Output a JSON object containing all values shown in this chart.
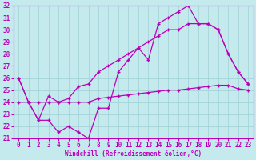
{
  "xlabel": "Windchill (Refroidissement éolien,°C)",
  "x": [
    0,
    1,
    2,
    3,
    4,
    5,
    6,
    7,
    8,
    9,
    10,
    11,
    12,
    13,
    14,
    15,
    16,
    17,
    18,
    19,
    20,
    21,
    22,
    23
  ],
  "curve_zigzag": [
    26,
    24,
    22.5,
    22.5,
    21.5,
    22,
    21.5,
    21,
    23.5,
    23.5,
    26.5,
    27.5,
    28.5,
    27.5,
    30.5,
    31,
    31.5,
    32,
    30.5,
    30.5,
    30,
    28,
    26.5,
    25.5
  ],
  "curve_upper": [
    26,
    24,
    22.5,
    24.5,
    24.0,
    24.3,
    25.3,
    25.5,
    26.5,
    27,
    27.5,
    28,
    28.5,
    29,
    29.5,
    30,
    30,
    30.5,
    30.5,
    30.5,
    30,
    28,
    26.5,
    25.5
  ],
  "trend_lower": [
    24,
    24,
    24,
    24,
    24,
    24,
    24,
    24,
    24.3,
    24.4,
    24.5,
    24.6,
    24.7,
    24.8,
    24.9,
    25.0,
    25.0,
    25.1,
    25.2,
    25.3,
    25.4,
    25.4,
    25.1,
    25.0
  ],
  "xlim": [
    -0.5,
    23.5
  ],
  "ylim": [
    21,
    32
  ],
  "yticks": [
    21,
    22,
    23,
    24,
    25,
    26,
    27,
    28,
    29,
    30,
    31,
    32
  ],
  "xticks": [
    0,
    1,
    2,
    3,
    4,
    5,
    6,
    7,
    8,
    9,
    10,
    11,
    12,
    13,
    14,
    15,
    16,
    17,
    18,
    19,
    20,
    21,
    22,
    23
  ],
  "line_color": "#bb00bb",
  "bg_color": "#c5eaed",
  "grid_color": "#9ed0d5"
}
